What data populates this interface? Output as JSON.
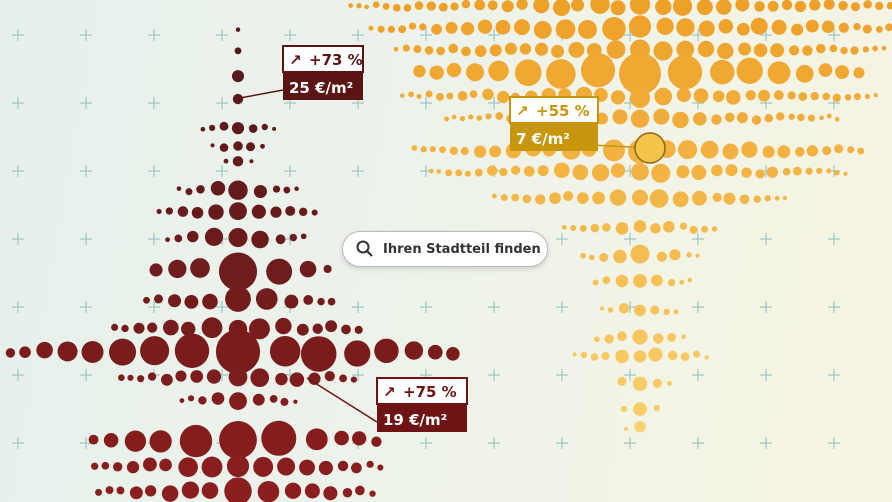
{
  "callouts": [
    {
      "change": "+73 %",
      "price": "25 €/m²"
    },
    {
      "change": "+75 %",
      "price": "19 €/m²"
    },
    {
      "change": "+55 %",
      "price": "7 €/m²"
    }
  ],
  "search": {
    "placeholder": "Ihren Stadtteil finden"
  }
}
